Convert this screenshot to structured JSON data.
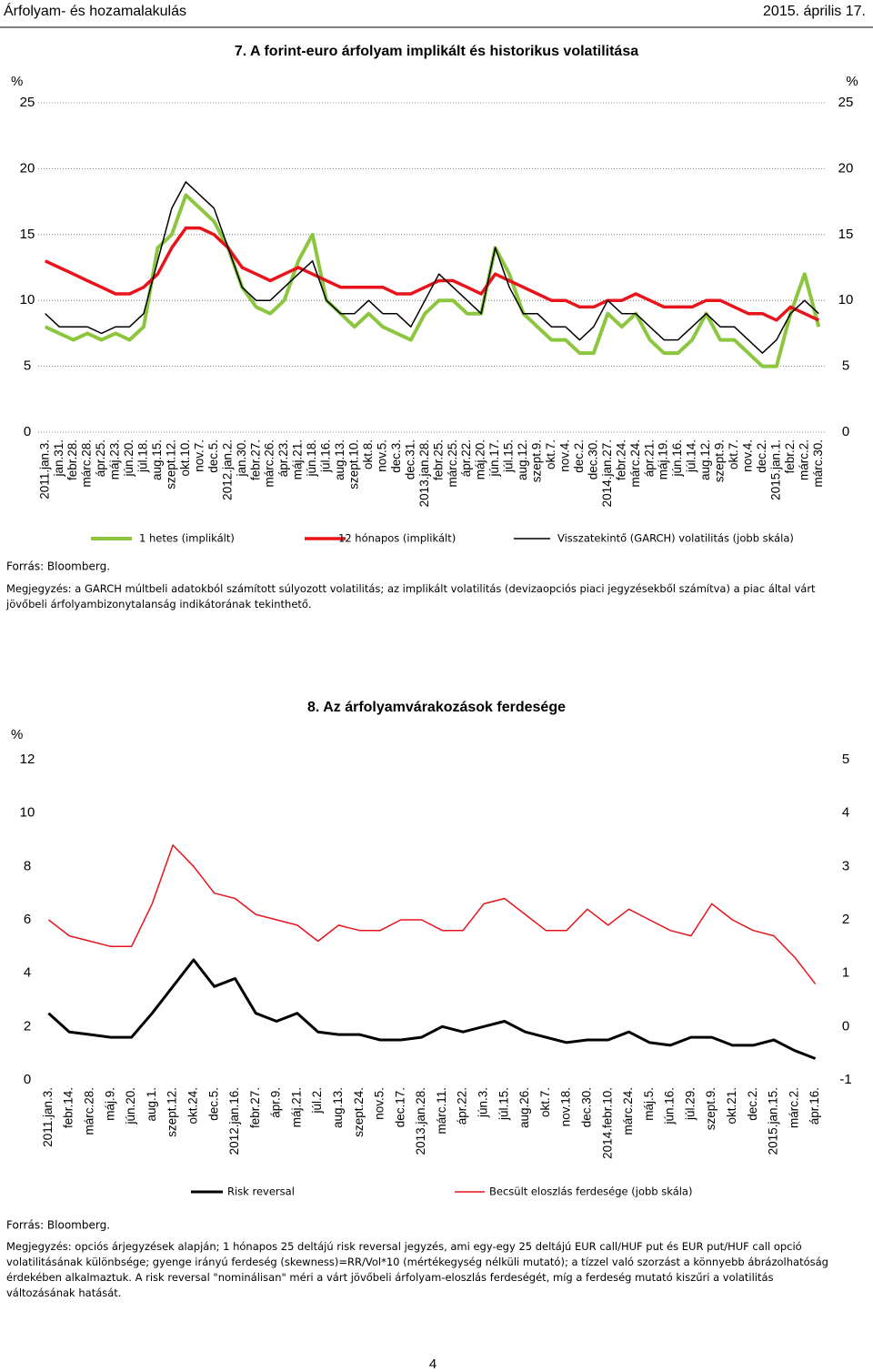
{
  "header": {
    "section": "Árfolyam- és hozamalakulás",
    "date": "2015. április 17."
  },
  "chart_data": [
    {
      "type": "line",
      "title": "7. A forint-euro árfolyam implikált és historikus volatilitása",
      "y_unit": "%",
      "y2_unit": "%",
      "categories": [
        "2011.jan.3.",
        "jan.31.",
        "febr.28.",
        "márc.28.",
        "ápr.25.",
        "máj.23.",
        "jún.20.",
        "júl.18.",
        "aug.15.",
        "szept.12.",
        "okt.10.",
        "nov.7.",
        "dec.5.",
        "2012.jan.2.",
        "jan.30.",
        "febr.27.",
        "márc.26.",
        "ápr.23.",
        "máj.21.",
        "jún.18.",
        "júl.16.",
        "aug.13.",
        "szept.10.",
        "okt.8.",
        "nov.5.",
        "dec.3.",
        "dec.31.",
        "2013.jan.28.",
        "febr.25.",
        "márc.25.",
        "ápr.22.",
        "máj.20.",
        "jún.17.",
        "júl.15.",
        "aug.12.",
        "szept.9.",
        "okt.7.",
        "nov.4.",
        "dec.2.",
        "dec.30.",
        "2014.jan.27.",
        "febr.24.",
        "márc.24.",
        "ápr.21.",
        "máj.19.",
        "jún.16.",
        "júl.14.",
        "aug.12.",
        "szept.9.",
        "okt.7.",
        "nov.4.",
        "dec.2.",
        "2015.jan.1.",
        "febr.2.",
        "márc.2.",
        "márc.30."
      ],
      "series": [
        {
          "name": "1 hetes (implikált)",
          "color": "#8cc63f",
          "width": 4,
          "values": [
            8,
            7.5,
            7,
            7.5,
            7,
            7.5,
            7,
            8,
            14,
            15,
            18,
            17,
            16,
            14,
            11,
            9.5,
            9,
            10,
            13,
            15,
            10,
            9,
            8,
            9,
            8,
            7.5,
            7,
            9,
            10,
            10,
            9,
            9,
            14,
            12,
            9,
            8,
            7,
            7,
            6,
            6,
            9,
            8,
            9,
            7,
            6,
            6,
            7,
            9,
            7,
            7,
            6,
            5,
            5,
            9,
            12,
            8
          ]
        },
        {
          "name": "12 hónapos (implikált)",
          "color": "#e8141b",
          "width": 3.5,
          "values": [
            13,
            12.5,
            12,
            11.5,
            11,
            10.5,
            10.5,
            11,
            12,
            14,
            15.5,
            15.5,
            15,
            14,
            12.5,
            12,
            11.5,
            12,
            12.5,
            12,
            11.5,
            11,
            11,
            11,
            11,
            10.5,
            10.5,
            11,
            11.5,
            11.5,
            11,
            10.5,
            12,
            11.5,
            11,
            10.5,
            10,
            10,
            9.5,
            9.5,
            10,
            10,
            10.5,
            10,
            9.5,
            9.5,
            9.5,
            10,
            10,
            9.5,
            9,
            9,
            8.5,
            9.5,
            9,
            8.5
          ]
        },
        {
          "name": "Visszatekintő (GARCH) volatilitás (jobb skála)",
          "color": "#000000",
          "width": 1.5,
          "axis": "y2",
          "values": [
            9,
            8,
            8,
            8,
            7.5,
            8,
            8,
            9,
            13,
            17,
            19,
            18,
            17,
            14,
            11,
            10,
            10,
            11,
            12,
            13,
            10,
            9,
            9,
            10,
            9,
            9,
            8,
            10,
            12,
            11,
            10,
            9,
            14,
            11,
            9,
            9,
            8,
            8,
            7,
            8,
            10,
            9,
            9,
            8,
            7,
            7,
            8,
            9,
            8,
            8,
            7,
            6,
            7,
            9,
            10,
            9
          ]
        }
      ],
      "ylim": [
        0,
        25
      ],
      "yticks": [
        0,
        5,
        10,
        15,
        20,
        25
      ],
      "y2lim": [
        0,
        25
      ],
      "y2ticks": [
        0,
        5,
        10,
        15,
        20,
        25
      ],
      "grid": true,
      "source": "Forrás: Bloomberg.",
      "note": "Megjegyzés: a GARCH múltbeli adatokból számított súlyozott volatilitás; az implikált volatilitás (devizaopciós piaci jegyzésekből számítva) a piac által várt jövőbeli árfolyambizonytalanság indikátorának tekinthető."
    },
    {
      "type": "line",
      "title": "8. Az árfolyamvárakozások ferdesége",
      "y_unit": "%",
      "categories": [
        "2011.jan.3.",
        "febr.14.",
        "márc.28.",
        "máj.9.",
        "jún.20.",
        "aug.1.",
        "szept.12.",
        "okt.24.",
        "dec.5.",
        "2012.jan.16.",
        "febr.27.",
        "ápr.9.",
        "máj.21.",
        "júl.2.",
        "aug.13.",
        "szept.24.",
        "nov.5.",
        "dec.17.",
        "2013.jan.28.",
        "márc.11.",
        "ápr.22.",
        "jún.3.",
        "júl.15.",
        "aug.26.",
        "okt.7.",
        "nov.18.",
        "dec.30.",
        "2014.febr.10.",
        "márc.24.",
        "máj.5.",
        "jún.16.",
        "júl.29.",
        "szept.9.",
        "okt.21.",
        "dec.2.",
        "2015.jan.15.",
        "márc.2.",
        "ápr.16."
      ],
      "series": [
        {
          "name": "Risk reversal",
          "color": "#000000",
          "width": 3,
          "values": [
            2.5,
            1.8,
            1.7,
            1.6,
            1.6,
            2.5,
            3.5,
            4.5,
            3.5,
            3.8,
            2.5,
            2.2,
            2.5,
            1.8,
            1.7,
            1.7,
            1.5,
            1.5,
            1.6,
            2.0,
            1.8,
            2.0,
            2.2,
            1.8,
            1.6,
            1.4,
            1.5,
            1.5,
            1.8,
            1.4,
            1.3,
            1.6,
            1.6,
            1.3,
            1.3,
            1.5,
            1.1,
            0.8
          ]
        },
        {
          "name": "Becsült eloszlás ferdesége (jobb skála)",
          "color": "#e8141b",
          "width": 1.5,
          "axis": "y2",
          "values": [
            2.0,
            1.7,
            1.6,
            1.5,
            1.5,
            2.3,
            3.4,
            3.0,
            2.5,
            2.4,
            2.1,
            2.0,
            1.9,
            1.6,
            1.9,
            1.8,
            1.8,
            2.0,
            2.0,
            1.8,
            1.8,
            2.3,
            2.4,
            2.1,
            1.8,
            1.8,
            2.2,
            1.9,
            2.2,
            2.0,
            1.8,
            1.7,
            2.3,
            2.0,
            1.8,
            1.7,
            1.3,
            0.8
          ]
        }
      ],
      "ylim": [
        0,
        12
      ],
      "yticks": [
        0,
        2,
        4,
        6,
        8,
        10,
        12
      ],
      "y2lim": [
        -1,
        5
      ],
      "y2ticks": [
        -1,
        0,
        1,
        2,
        3,
        4,
        5
      ],
      "grid": false,
      "source": "Forrás: Bloomberg.",
      "note": "Megjegyzés: opciós árjegyzések alapján; 1 hónapos 25 deltájú risk reversal jegyzés, ami egy-egy 25 deltájú EUR call/HUF put és EUR put/HUF call opció volatilitásának különbsége; gyenge irányú ferdeség (skewness)=RR/Vol*10 (mértékegység nélküli mutató); a tízzel való szorzást a könnyebb ábrázolhatóság érdekében alkalmaztuk. A risk reversal \"nominálisan\" méri a várt jövőbeli árfolyam-eloszlás ferdeségét, míg a ferdeség mutató kiszűri a volatilitás változásának hatását."
    }
  ],
  "page_number": "4"
}
